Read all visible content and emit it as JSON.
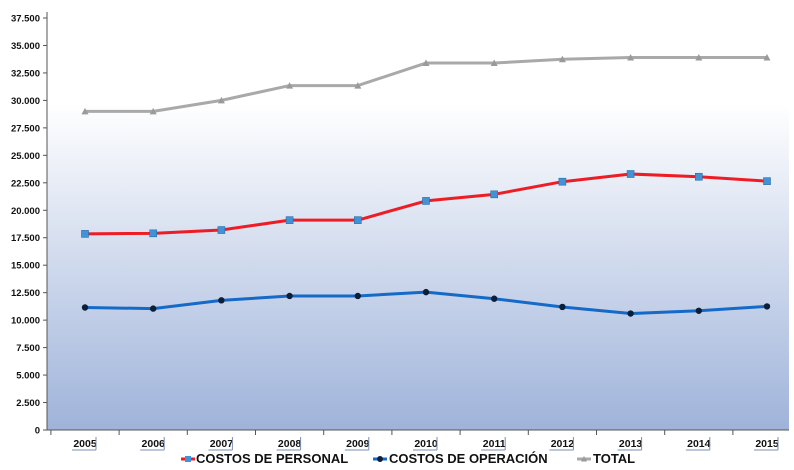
{
  "colors": {
    "personal": "#ee1c24",
    "operacion": "#1569c7",
    "total": "#a9a9a9",
    "personal_marker": "#3f93d6",
    "operacion_marker": "#0b1f3a",
    "total_marker": "#9a9a9a",
    "bg_top": "#ffffff",
    "bg_bottom": "#9fb3da"
  },
  "chart_data": {
    "type": "line",
    "x": [
      "2005",
      "2006",
      "2007",
      "2008",
      "2009",
      "2010",
      "2011",
      "2012",
      "2013",
      "2014",
      "2015"
    ],
    "ylim": [
      0,
      37500
    ],
    "yticks": [
      "0",
      "2.500",
      "5.000",
      "7.500",
      "10.000",
      "12.500",
      "15.000",
      "17.500",
      "20.000",
      "22.500",
      "25.000",
      "27.500",
      "30.000",
      "32.500",
      "35.000",
      "37.500"
    ],
    "grid": false,
    "legend_position": "bottom",
    "series": [
      {
        "name": "COSTOS DE PERSONAL",
        "key": "personal",
        "values": [
          17850,
          17900,
          18200,
          19100,
          19100,
          20850,
          21450,
          22600,
          23300,
          23050,
          22650
        ]
      },
      {
        "name": "COSTOS DE OPERACIÓN",
        "key": "operacion",
        "values": [
          11150,
          11050,
          11800,
          12200,
          12200,
          12550,
          11950,
          11200,
          10600,
          10850,
          11250
        ]
      },
      {
        "name": "TOTAL",
        "key": "total",
        "values": [
          29000,
          29000,
          30000,
          31350,
          31350,
          33400,
          33400,
          33750,
          33900,
          33900,
          33900
        ]
      }
    ]
  }
}
